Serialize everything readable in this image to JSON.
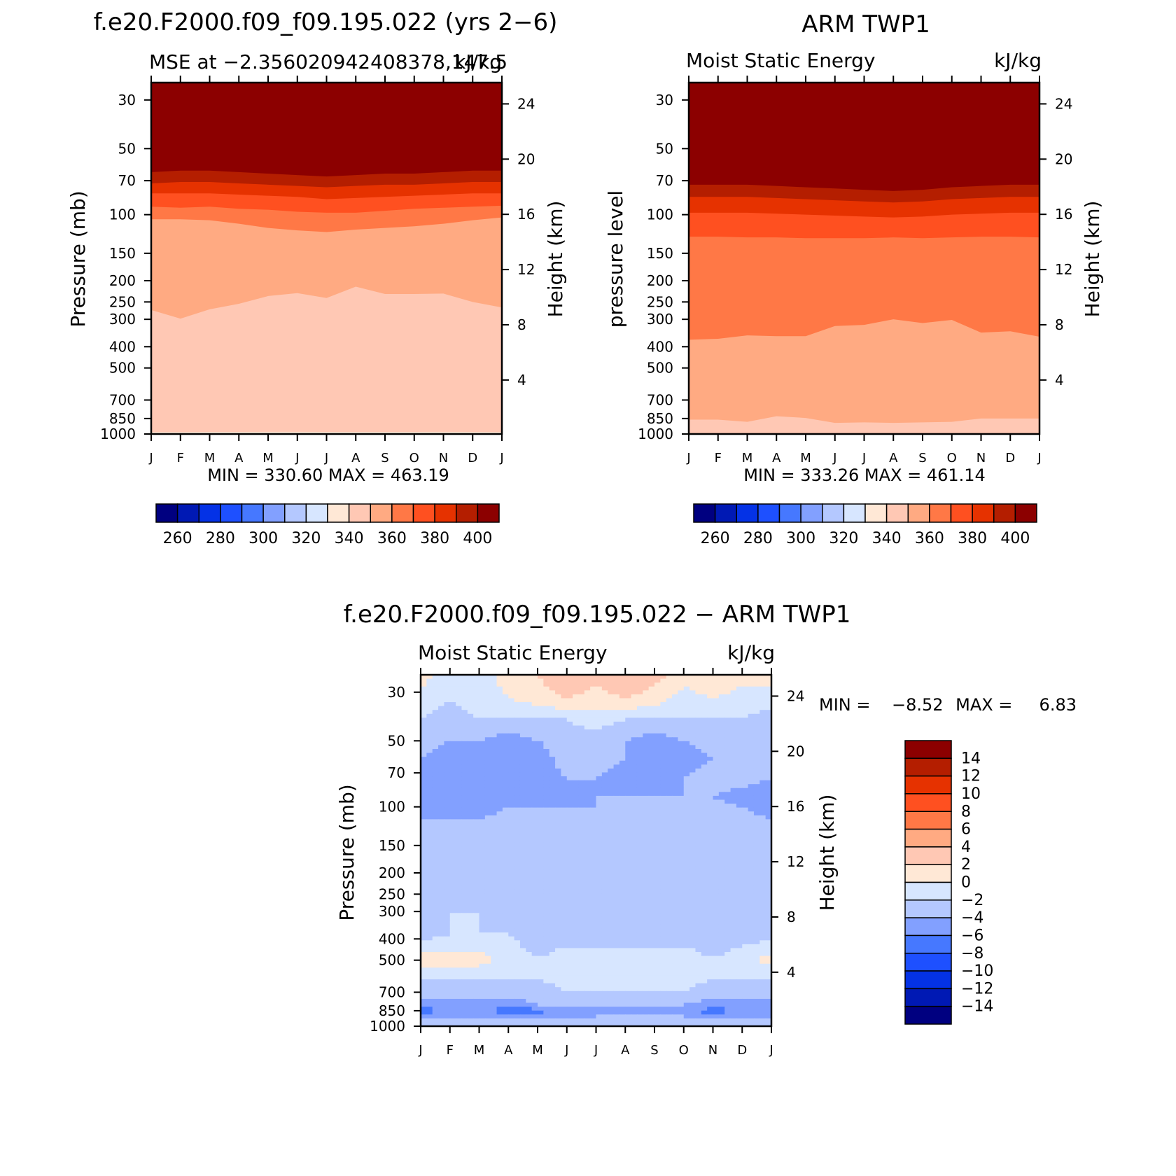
{
  "figure": {
    "colormap_abs": [
      "#000080",
      "#0019b4",
      "#0432e6",
      "#1e50ff",
      "#4678ff",
      "#82a0ff",
      "#b4c8ff",
      "#d7e6ff",
      "#ffe8d6",
      "#ffc8b4",
      "#ffaa82",
      "#ff7846",
      "#ff5020",
      "#e63200",
      "#b41e00",
      "#8c0000"
    ],
    "colormap_diff": [
      "#000080",
      "#0019b4",
      "#0432e6",
      "#1e50ff",
      "#4678ff",
      "#82a0ff",
      "#b4c8ff",
      "#d7e6ff",
      "#ffe8d6",
      "#ffc8b4",
      "#ffaa82",
      "#ff7846",
      "#ff5020",
      "#e63200",
      "#b41e00",
      "#8c0000"
    ]
  },
  "chart_data": [
    {
      "type": "contour",
      "title": "f.e20.F2000.f09_f09.195.022 (yrs 2−6)",
      "left_label": "MSE at −2.356020942408378,147.5",
      "right_label": "kJ/kg",
      "ylabel": "Pressure (mb)",
      "y2label": "Height (km)",
      "x_ticks": [
        "J",
        "F",
        "M",
        "A",
        "M",
        "J",
        "J",
        "A",
        "S",
        "O",
        "N",
        "D",
        "J"
      ],
      "y_ticks": [
        "30",
        "50",
        "70",
        "100",
        "150",
        "200",
        "250",
        "300",
        "400",
        "500",
        "700",
        "850",
        "1000"
      ],
      "y2_ticks": [
        "24",
        "20",
        "16",
        "12",
        "8",
        "4"
      ],
      "stats": "MIN =  330.60  MAX =  463.19",
      "colorbar_labels": [
        "260",
        "280",
        "300",
        "320",
        "340",
        "360",
        "380",
        "400"
      ],
      "x": [
        0,
        1,
        2,
        3,
        4,
        5,
        6,
        7,
        8,
        9,
        10,
        11,
        12
      ],
      "contour_levels": [
        250,
        260,
        270,
        280,
        290,
        300,
        310,
        320,
        330,
        340,
        350,
        360,
        370,
        380,
        390,
        400
      ],
      "level_boundaries_mb": {
        "330": [
          980,
          980,
          978,
          978,
          977,
          977,
          978,
          978,
          978,
          978,
          977,
          978,
          980
        ],
        "340": [
          272,
          298,
          270,
          255,
          235,
          228,
          240,
          213,
          230,
          230,
          229,
          250,
          265
        ],
        "350": [
          105,
          105,
          106,
          110,
          115,
          118,
          120,
          117,
          115,
          113,
          110,
          106,
          103
        ],
        "360": [
          92,
          93,
          92,
          94,
          95,
          97,
          98,
          98,
          96,
          94,
          93,
          92,
          91
        ],
        "370": [
          80,
          80,
          80,
          81,
          82,
          83,
          85,
          84,
          83,
          82,
          81,
          80,
          80
        ],
        "380": [
          72,
          71,
          71,
          72,
          73,
          74,
          75,
          74,
          73,
          73,
          72,
          71,
          71
        ],
        "390": [
          64,
          63,
          63,
          64,
          65,
          66,
          67,
          66,
          65,
          65,
          64,
          63,
          63
        ],
        "400": [
          56,
          55,
          55,
          56,
          57,
          58,
          59,
          58,
          57,
          57,
          56,
          55,
          55
        ]
      }
    },
    {
      "type": "contour",
      "title": "ARM TWP1",
      "left_label": "Moist Static Energy",
      "right_label": "kJ/kg",
      "ylabel": "pressure level",
      "y2label": "Height (km)",
      "x_ticks": [
        "J",
        "F",
        "M",
        "A",
        "M",
        "J",
        "J",
        "A",
        "S",
        "O",
        "N",
        "D",
        "J"
      ],
      "y_ticks": [
        "30",
        "50",
        "70",
        "100",
        "150",
        "200",
        "250",
        "300",
        "400",
        "500",
        "700",
        "850",
        "1000"
      ],
      "y2_ticks": [
        "24",
        "20",
        "16",
        "12",
        "8",
        "4"
      ],
      "stats": "MIN =  333.26  MAX =  461.14",
      "colorbar_labels": [
        "260",
        "280",
        "300",
        "320",
        "340",
        "360",
        "380",
        "400"
      ],
      "x": [
        0,
        1,
        2,
        3,
        4,
        5,
        6,
        7,
        8,
        9,
        10,
        11,
        12
      ],
      "contour_levels": [
        250,
        260,
        270,
        280,
        290,
        300,
        310,
        320,
        330,
        340,
        350,
        360,
        370,
        380,
        390,
        400
      ],
      "level_boundaries_mb": {
        "340": [
          860,
          860,
          880,
          830,
          845,
          890,
          885,
          890,
          885,
          880,
          850,
          850,
          850
        ],
        "350": [
          372,
          368,
          355,
          358,
          358,
          322,
          318,
          300,
          312,
          302,
          345,
          340,
          360
        ],
        "360": [
          126,
          126,
          127,
          127,
          128,
          128,
          128,
          127,
          128,
          127,
          126,
          126,
          127
        ],
        "370": [
          98,
          98,
          98,
          99,
          100,
          101,
          102,
          103,
          102,
          100,
          99,
          98,
          98
        ],
        "380": [
          83,
          83,
          83,
          84,
          85,
          86,
          87,
          88,
          87,
          85,
          84,
          83,
          83
        ],
        "390": [
          73,
          73,
          73,
          74,
          75,
          76,
          77,
          78,
          77,
          75,
          74,
          73,
          73
        ],
        "400": [
          62,
          62,
          62,
          63,
          64,
          65,
          66,
          67,
          66,
          64,
          63,
          62,
          61
        ]
      }
    },
    {
      "type": "contour",
      "title": "f.e20.F2000.f09_f09.195.022 − ARM TWP1",
      "left_label": "Moist Static Energy",
      "right_label": "kJ/kg",
      "ylabel": "Pressure (mb)",
      "y2label": "Height (km)",
      "x_ticks": [
        "J",
        "F",
        "M",
        "A",
        "M",
        "J",
        "J",
        "A",
        "S",
        "O",
        "N",
        "D",
        "J"
      ],
      "y_ticks": [
        "30",
        "50",
        "70",
        "100",
        "150",
        "200",
        "250",
        "300",
        "400",
        "500",
        "700",
        "850",
        "1000"
      ],
      "y2_ticks": [
        "24",
        "20",
        "16",
        "12",
        "8",
        "4"
      ],
      "stats_min": "MIN =    −8.52",
      "stats_max": "MAX =     6.83",
      "colorbar_labels": [
        "14",
        "12",
        "10",
        "8",
        "6",
        "4",
        "2",
        "0",
        "−2",
        "−4",
        "−6",
        "−8",
        "−10",
        "−12",
        "−14"
      ],
      "x": [
        0,
        1,
        2,
        3,
        4,
        5,
        6,
        7,
        8,
        9,
        10,
        11,
        12
      ],
      "contour_levels": [
        -14,
        -12,
        -10,
        -8,
        -6,
        -4,
        -2,
        0,
        2,
        4,
        6,
        8,
        10,
        12,
        14
      ],
      "value_grid": {
        "pressure_mb": [
          25,
          32,
          40,
          50,
          60,
          75,
          90,
          100,
          130,
          170,
          220,
          300,
          380,
          500,
          600,
          700,
          800,
          850,
          900,
          1000
        ],
        "values": [
          [
            1,
            -1,
            -1,
            1,
            2,
            4,
            3,
            4,
            3,
            1,
            2,
            1,
            1
          ],
          [
            -1,
            -2,
            -1,
            0,
            1,
            2,
            1,
            2,
            1,
            -1,
            0,
            -1,
            -1
          ],
          [
            -2,
            -3,
            -2,
            -2,
            -2,
            -2,
            -1,
            -2,
            -2,
            -2,
            -2,
            -2,
            -3
          ],
          [
            -3,
            -4,
            -4,
            -5,
            -4,
            -3,
            -3,
            -4,
            -5,
            -4,
            -3,
            -3,
            -3
          ],
          [
            -4,
            -5,
            -5,
            -5,
            -5,
            -3,
            -3,
            -4,
            -5,
            -5,
            -4,
            -3,
            -3
          ],
          [
            -4,
            -4,
            -5,
            -5,
            -5,
            -4,
            -4,
            -5,
            -5,
            -4,
            -3,
            -3,
            -4
          ],
          [
            -6,
            -6,
            -5,
            -4,
            -5,
            -5,
            -4,
            -4,
            -4,
            -4,
            -4,
            -5,
            -6
          ],
          [
            -5,
            -5,
            -5,
            -4,
            -4,
            -4,
            -4,
            -4,
            -4,
            -3,
            -3,
            -4,
            -5
          ],
          [
            -3,
            -3,
            -3,
            -3,
            -3,
            -2,
            -2,
            -2,
            -3,
            -3,
            -3,
            -3,
            -3
          ],
          [
            -3,
            -3,
            -3,
            -3,
            -3,
            -3,
            -2,
            -3,
            -3,
            -3,
            -3,
            -3,
            -3
          ],
          [
            -3,
            -3,
            -3,
            -3,
            -3,
            -3,
            -3,
            -3,
            -3,
            -3,
            -3,
            -3,
            -3
          ],
          [
            -3,
            -2,
            -2,
            -3,
            -3,
            -3,
            -3,
            -3,
            -3,
            -3,
            -3,
            -3,
            -3
          ],
          [
            -3,
            -2,
            -2,
            -2,
            -3,
            -3,
            -3,
            -3,
            -3,
            -3,
            -3,
            -3,
            -3
          ],
          [
            1,
            1,
            1,
            -1,
            -2,
            -1,
            -1,
            -1,
            -1,
            -1,
            -2,
            -1,
            1
          ],
          [
            -2,
            -2,
            -2,
            -2,
            -2,
            -1,
            -1,
            -1,
            -1,
            -1,
            -2,
            -2,
            -2
          ],
          [
            -3,
            -3,
            -3,
            -3,
            -3,
            -2,
            -2,
            -2,
            -2,
            -2,
            -3,
            -3,
            -3
          ],
          [
            -5,
            -5,
            -5,
            -5,
            -4,
            -3,
            -3,
            -3,
            -3,
            -4,
            -5,
            -5,
            -5
          ],
          [
            -7,
            -6,
            -6,
            -7,
            -7,
            -5,
            -5,
            -5,
            -5,
            -6,
            -7,
            -6,
            -6
          ],
          [
            -5,
            -5,
            -5,
            -5,
            -5,
            -5,
            -4,
            -4,
            -4,
            -4,
            -5,
            -5,
            -5
          ],
          [
            -2,
            -2,
            -2,
            -2,
            -2,
            -2,
            -2,
            -2,
            -2,
            -2,
            -2,
            -2,
            -2
          ]
        ]
      }
    }
  ]
}
